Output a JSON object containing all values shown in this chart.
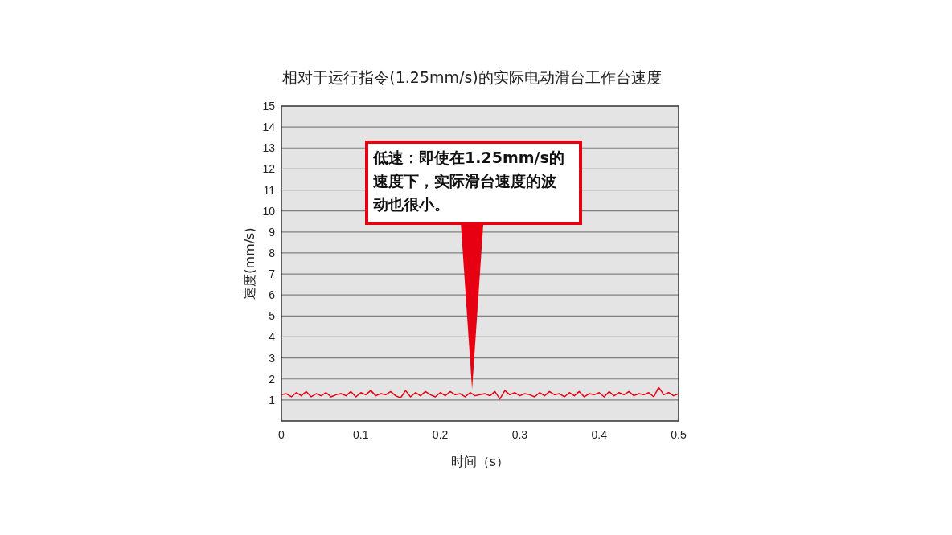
{
  "chart_data": {
    "type": "line",
    "title": "相对于运行指令(1.25mm/s)的实际电动滑台工作台速度",
    "xlabel": "时间（s）",
    "ylabel": "速度(mm/s)",
    "xlim": [
      0,
      0.5
    ],
    "xticks": [
      0,
      0.1,
      0.2,
      0.3,
      0.4,
      0.5
    ],
    "ylim": [
      0,
      15
    ],
    "yticks": [
      {
        "value": 0,
        "label": null
      },
      1,
      2,
      3,
      4,
      5,
      6,
      7,
      8,
      9,
      10,
      11,
      12,
      13,
      14,
      15
    ],
    "grid": "y",
    "annotations": [
      {
        "text": "低速：即使在1.25mm/s的速度下，实际滑台速度的波动也很小。",
        "x": 0.24,
        "y": 1.5
      }
    ],
    "series": [
      {
        "color": "#e60012",
        "x": [
          0,
          0.00625,
          0.0125,
          0.01875,
          0.025,
          0.03125,
          0.0375,
          0.04375,
          0.05,
          0.05625,
          0.0625,
          0.06875,
          0.075,
          0.08125,
          0.0875,
          0.09375,
          0.1,
          0.10625,
          0.1125,
          0.11875,
          0.125,
          0.13125,
          0.1375,
          0.14375,
          0.15,
          0.15625,
          0.1625,
          0.16875,
          0.175,
          0.18125,
          0.1875,
          0.19375,
          0.2,
          0.20625,
          0.2125,
          0.21875,
          0.225,
          0.23125,
          0.2375,
          0.24375,
          0.25,
          0.25625,
          0.2625,
          0.26875,
          0.275,
          0.28125,
          0.2875,
          0.29375,
          0.3,
          0.30625,
          0.3125,
          0.31875,
          0.325,
          0.33125,
          0.3375,
          0.34375,
          0.35,
          0.35625,
          0.3625,
          0.36875,
          0.375,
          0.38125,
          0.3875,
          0.39375,
          0.4,
          0.40625,
          0.4125,
          0.41875,
          0.425,
          0.43125,
          0.4375,
          0.44375,
          0.45,
          0.45625,
          0.4625,
          0.46875,
          0.475,
          0.48125,
          0.4875,
          0.49375,
          0.5
        ],
        "values": [
          1.25,
          1.3,
          1.15,
          1.35,
          1.2,
          1.4,
          1.15,
          1.3,
          1.2,
          1.35,
          1.15,
          1.25,
          1.3,
          1.2,
          1.4,
          1.15,
          1.35,
          1.25,
          1.45,
          1.2,
          1.3,
          1.25,
          1.4,
          1.2,
          1.1,
          1.45,
          1.15,
          1.35,
          1.2,
          1.4,
          1.25,
          1.15,
          1.35,
          1.2,
          1.4,
          1.25,
          1.3,
          1.15,
          1.35,
          1.2,
          1.25,
          1.3,
          1.2,
          1.4,
          1.05,
          1.45,
          1.25,
          1.35,
          1.2,
          1.3,
          1.25,
          1.15,
          1.35,
          1.2,
          1.4,
          1.25,
          1.3,
          1.15,
          1.35,
          1.2,
          1.4,
          1.15,
          1.3,
          1.25,
          1.35,
          1.15,
          1.4,
          1.2,
          1.35,
          1.25,
          1.4,
          1.2,
          1.3,
          1.25,
          1.35,
          1.15,
          1.6,
          1.25,
          1.35,
          1.2,
          1.3
        ]
      }
    ]
  }
}
